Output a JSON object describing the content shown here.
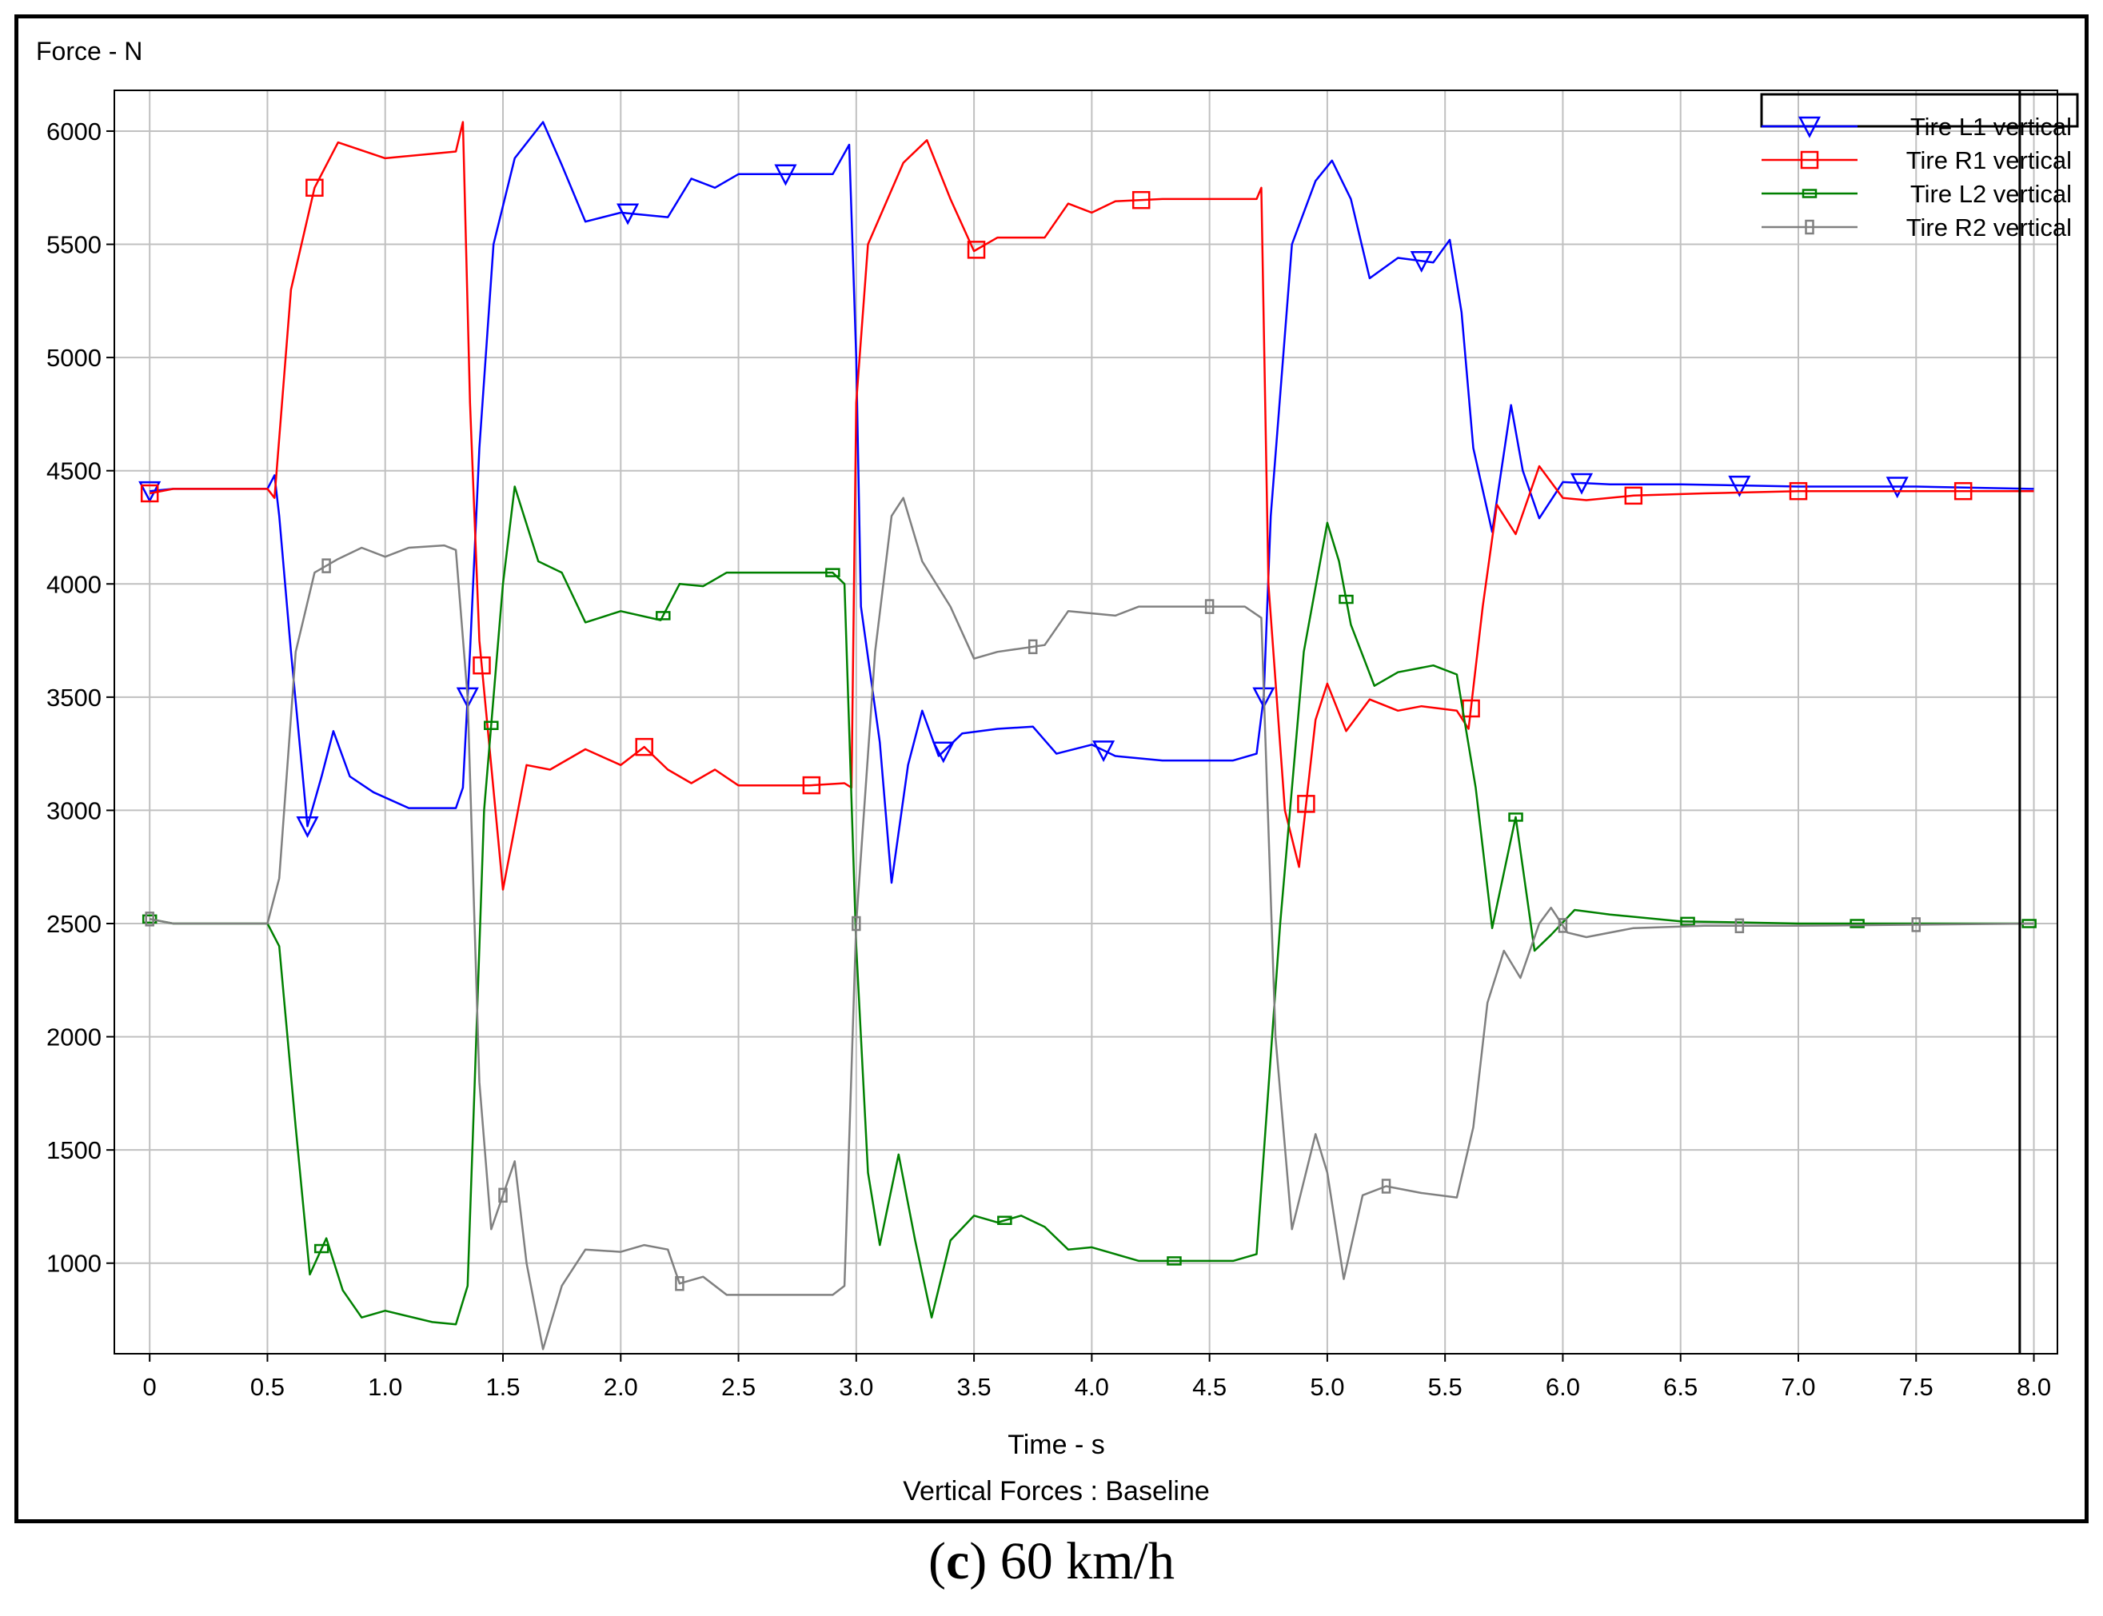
{
  "caption": {
    "open": "(",
    "letter": "c",
    "close": ")",
    "text": "60 km/h"
  },
  "chart_data": {
    "type": "line",
    "title": "Vertical Forces : Baseline",
    "xlabel": "Time - s",
    "ylabel": "Force - N",
    "xlim": [
      -0.15,
      8.1
    ],
    "ylim": [
      600,
      6180
    ],
    "x_ticks": [
      0,
      0.5,
      1.0,
      1.5,
      2.0,
      2.5,
      3.0,
      3.5,
      4.0,
      4.5,
      5.0,
      5.5,
      6.0,
      6.5,
      7.0,
      7.5,
      8.0
    ],
    "x_tick_labels": [
      "0",
      "0.5",
      "1.0",
      "1.5",
      "2.0",
      "2.5",
      "3.0",
      "3.5",
      "4.0",
      "4.5",
      "5.0",
      "5.5",
      "6.0",
      "6.5",
      "7.0",
      "7.5",
      "8.0"
    ],
    "y_ticks": [
      1000,
      1500,
      2000,
      2500,
      3000,
      3500,
      4000,
      4500,
      5000,
      5500,
      6000
    ],
    "y_tick_labels": [
      "1000",
      "1500",
      "2000",
      "2500",
      "3000",
      "3500",
      "4000",
      "4500",
      "5000",
      "5500",
      "6000"
    ],
    "grid": true,
    "legend_position": "top-right",
    "cursor_x": 7.94,
    "series": [
      {
        "name": "Tire L1 vertical",
        "color": "#0000ff",
        "marker": "triangle-down",
        "points": [
          [
            0,
            4410
          ],
          [
            0.1,
            4420
          ],
          [
            0.3,
            4420
          ],
          [
            0.5,
            4420
          ],
          [
            0.53,
            4480
          ],
          [
            0.55,
            4300
          ],
          [
            0.6,
            3700
          ],
          [
            0.67,
            2930
          ],
          [
            0.73,
            3150
          ],
          [
            0.78,
            3350
          ],
          [
            0.85,
            3150
          ],
          [
            0.95,
            3080
          ],
          [
            1.1,
            3010
          ],
          [
            1.3,
            3010
          ],
          [
            1.33,
            3100
          ],
          [
            1.36,
            3700
          ],
          [
            1.4,
            4600
          ],
          [
            1.46,
            5500
          ],
          [
            1.55,
            5880
          ],
          [
            1.67,
            6040
          ],
          [
            1.75,
            5850
          ],
          [
            1.85,
            5600
          ],
          [
            2.0,
            5640
          ],
          [
            2.2,
            5620
          ],
          [
            2.3,
            5790
          ],
          [
            2.4,
            5750
          ],
          [
            2.5,
            5810
          ],
          [
            2.7,
            5810
          ],
          [
            2.9,
            5810
          ],
          [
            2.97,
            5940
          ],
          [
            3.0,
            5000
          ],
          [
            3.02,
            3900
          ],
          [
            3.1,
            3300
          ],
          [
            3.15,
            2680
          ],
          [
            3.22,
            3200
          ],
          [
            3.28,
            3440
          ],
          [
            3.35,
            3240
          ],
          [
            3.45,
            3340
          ],
          [
            3.6,
            3360
          ],
          [
            3.75,
            3370
          ],
          [
            3.85,
            3250
          ],
          [
            4.0,
            3290
          ],
          [
            4.1,
            3240
          ],
          [
            4.3,
            3220
          ],
          [
            4.6,
            3220
          ],
          [
            4.7,
            3250
          ],
          [
            4.73,
            3500
          ],
          [
            4.76,
            4300
          ],
          [
            4.85,
            5500
          ],
          [
            4.95,
            5780
          ],
          [
            5.02,
            5870
          ],
          [
            5.1,
            5700
          ],
          [
            5.18,
            5350
          ],
          [
            5.3,
            5440
          ],
          [
            5.45,
            5420
          ],
          [
            5.52,
            5520
          ],
          [
            5.57,
            5200
          ],
          [
            5.62,
            4600
          ],
          [
            5.7,
            4230
          ],
          [
            5.78,
            4790
          ],
          [
            5.83,
            4500
          ],
          [
            5.9,
            4290
          ],
          [
            6.0,
            4450
          ],
          [
            6.2,
            4440
          ],
          [
            6.5,
            4440
          ],
          [
            7.0,
            4430
          ],
          [
            7.5,
            4430
          ],
          [
            8.0,
            4420
          ]
        ],
        "marker_x": [
          0,
          0.67,
          1.35,
          2.03,
          2.7,
          3.37,
          4.05,
          4.73,
          5.4,
          6.08,
          6.75,
          7.42
        ]
      },
      {
        "name": "Tire R1 vertical",
        "color": "#ff0000",
        "marker": "square",
        "points": [
          [
            0,
            4400
          ],
          [
            0.1,
            4420
          ],
          [
            0.3,
            4420
          ],
          [
            0.5,
            4420
          ],
          [
            0.53,
            4380
          ],
          [
            0.6,
            5300
          ],
          [
            0.7,
            5750
          ],
          [
            0.8,
            5950
          ],
          [
            1.0,
            5880
          ],
          [
            1.3,
            5910
          ],
          [
            1.33,
            6040
          ],
          [
            1.36,
            4800
          ],
          [
            1.4,
            3750
          ],
          [
            1.5,
            2650
          ],
          [
            1.6,
            3200
          ],
          [
            1.7,
            3180
          ],
          [
            1.85,
            3270
          ],
          [
            2.0,
            3200
          ],
          [
            2.1,
            3280
          ],
          [
            2.2,
            3180
          ],
          [
            2.3,
            3120
          ],
          [
            2.4,
            3180
          ],
          [
            2.5,
            3110
          ],
          [
            2.8,
            3110
          ],
          [
            2.95,
            3120
          ],
          [
            2.98,
            3100
          ],
          [
            3.0,
            4800
          ],
          [
            3.05,
            5500
          ],
          [
            3.2,
            5860
          ],
          [
            3.3,
            5960
          ],
          [
            3.4,
            5700
          ],
          [
            3.5,
            5470
          ],
          [
            3.6,
            5530
          ],
          [
            3.8,
            5530
          ],
          [
            3.9,
            5680
          ],
          [
            4.0,
            5640
          ],
          [
            4.1,
            5690
          ],
          [
            4.3,
            5700
          ],
          [
            4.7,
            5700
          ],
          [
            4.72,
            5750
          ],
          [
            4.75,
            4000
          ],
          [
            4.82,
            3000
          ],
          [
            4.88,
            2750
          ],
          [
            4.95,
            3400
          ],
          [
            5.0,
            3560
          ],
          [
            5.08,
            3350
          ],
          [
            5.18,
            3490
          ],
          [
            5.3,
            3440
          ],
          [
            5.4,
            3460
          ],
          [
            5.55,
            3440
          ],
          [
            5.6,
            3360
          ],
          [
            5.66,
            3900
          ],
          [
            5.72,
            4350
          ],
          [
            5.8,
            4220
          ],
          [
            5.9,
            4520
          ],
          [
            6.0,
            4380
          ],
          [
            6.1,
            4370
          ],
          [
            6.3,
            4390
          ],
          [
            6.6,
            4400
          ],
          [
            7.0,
            4410
          ],
          [
            8.0,
            4410
          ]
        ],
        "marker_x": [
          0,
          0.7,
          1.41,
          2.1,
          2.81,
          3.51,
          4.21,
          4.91,
          5.61,
          6.3,
          7.0,
          7.7
        ]
      },
      {
        "name": "Tire L2 vertical",
        "color": "#008000",
        "marker": "square-small",
        "points": [
          [
            0,
            2520
          ],
          [
            0.1,
            2500
          ],
          [
            0.3,
            2500
          ],
          [
            0.5,
            2500
          ],
          [
            0.55,
            2400
          ],
          [
            0.62,
            1600
          ],
          [
            0.68,
            950
          ],
          [
            0.75,
            1110
          ],
          [
            0.82,
            880
          ],
          [
            0.9,
            760
          ],
          [
            1.0,
            790
          ],
          [
            1.2,
            740
          ],
          [
            1.3,
            730
          ],
          [
            1.35,
            900
          ],
          [
            1.38,
            1800
          ],
          [
            1.42,
            3000
          ],
          [
            1.5,
            4000
          ],
          [
            1.55,
            4430
          ],
          [
            1.65,
            4100
          ],
          [
            1.75,
            4050
          ],
          [
            1.85,
            3830
          ],
          [
            2.0,
            3880
          ],
          [
            2.17,
            3840
          ],
          [
            2.25,
            4000
          ],
          [
            2.35,
            3990
          ],
          [
            2.45,
            4050
          ],
          [
            2.9,
            4050
          ],
          [
            2.95,
            4000
          ],
          [
            3.0,
            2400
          ],
          [
            3.05,
            1400
          ],
          [
            3.1,
            1080
          ],
          [
            3.18,
            1480
          ],
          [
            3.25,
            1100
          ],
          [
            3.32,
            760
          ],
          [
            3.4,
            1100
          ],
          [
            3.5,
            1210
          ],
          [
            3.6,
            1180
          ],
          [
            3.7,
            1210
          ],
          [
            3.8,
            1160
          ],
          [
            3.9,
            1060
          ],
          [
            4.0,
            1070
          ],
          [
            4.2,
            1010
          ],
          [
            4.6,
            1010
          ],
          [
            4.7,
            1040
          ],
          [
            4.8,
            2500
          ],
          [
            4.9,
            3700
          ],
          [
            5.0,
            4270
          ],
          [
            5.05,
            4100
          ],
          [
            5.1,
            3820
          ],
          [
            5.2,
            3550
          ],
          [
            5.3,
            3610
          ],
          [
            5.45,
            3640
          ],
          [
            5.55,
            3600
          ],
          [
            5.63,
            3100
          ],
          [
            5.7,
            2480
          ],
          [
            5.8,
            2970
          ],
          [
            5.88,
            2380
          ],
          [
            5.95,
            2450
          ],
          [
            6.05,
            2560
          ],
          [
            6.2,
            2540
          ],
          [
            6.5,
            2510
          ],
          [
            7.0,
            2500
          ],
          [
            8.0,
            2500
          ]
        ],
        "marker_x": [
          0,
          0.73,
          1.45,
          2.18,
          2.9,
          3.63,
          4.35,
          5.08,
          5.8,
          6.53,
          7.25,
          7.98
        ]
      },
      {
        "name": "Tire R2 vertical",
        "color": "#808080",
        "marker": "square-small",
        "points": [
          [
            0,
            2520
          ],
          [
            0.1,
            2500
          ],
          [
            0.3,
            2500
          ],
          [
            0.5,
            2500
          ],
          [
            0.55,
            2700
          ],
          [
            0.62,
            3700
          ],
          [
            0.7,
            4050
          ],
          [
            0.8,
            4110
          ],
          [
            0.9,
            4160
          ],
          [
            1.0,
            4120
          ],
          [
            1.1,
            4160
          ],
          [
            1.25,
            4170
          ],
          [
            1.3,
            4150
          ],
          [
            1.35,
            3500
          ],
          [
            1.4,
            1800
          ],
          [
            1.45,
            1150
          ],
          [
            1.5,
            1300
          ],
          [
            1.55,
            1450
          ],
          [
            1.6,
            1000
          ],
          [
            1.67,
            620
          ],
          [
            1.75,
            900
          ],
          [
            1.85,
            1060
          ],
          [
            2.0,
            1050
          ],
          [
            2.1,
            1080
          ],
          [
            2.2,
            1060
          ],
          [
            2.25,
            910
          ],
          [
            2.35,
            940
          ],
          [
            2.45,
            860
          ],
          [
            2.7,
            860
          ],
          [
            2.9,
            860
          ],
          [
            2.95,
            900
          ],
          [
            3.0,
            2500
          ],
          [
            3.08,
            3700
          ],
          [
            3.15,
            4300
          ],
          [
            3.2,
            4380
          ],
          [
            3.28,
            4100
          ],
          [
            3.4,
            3900
          ],
          [
            3.5,
            3670
          ],
          [
            3.6,
            3700
          ],
          [
            3.8,
            3730
          ],
          [
            3.9,
            3880
          ],
          [
            4.1,
            3860
          ],
          [
            4.2,
            3900
          ],
          [
            4.65,
            3900
          ],
          [
            4.72,
            3850
          ],
          [
            4.78,
            2000
          ],
          [
            4.85,
            1150
          ],
          [
            4.95,
            1570
          ],
          [
            5.0,
            1400
          ],
          [
            5.07,
            930
          ],
          [
            5.15,
            1300
          ],
          [
            5.25,
            1340
          ],
          [
            5.4,
            1310
          ],
          [
            5.55,
            1290
          ],
          [
            5.62,
            1600
          ],
          [
            5.68,
            2150
          ],
          [
            5.75,
            2380
          ],
          [
            5.82,
            2260
          ],
          [
            5.9,
            2500
          ],
          [
            5.95,
            2570
          ],
          [
            6.02,
            2460
          ],
          [
            6.1,
            2440
          ],
          [
            6.3,
            2480
          ],
          [
            6.6,
            2490
          ],
          [
            7.0,
            2490
          ],
          [
            8.0,
            2500
          ]
        ],
        "marker_x": [
          0,
          0.75,
          1.5,
          2.25,
          3.0,
          3.75,
          4.5,
          5.25,
          6.0,
          6.75,
          7.5
        ]
      }
    ]
  }
}
